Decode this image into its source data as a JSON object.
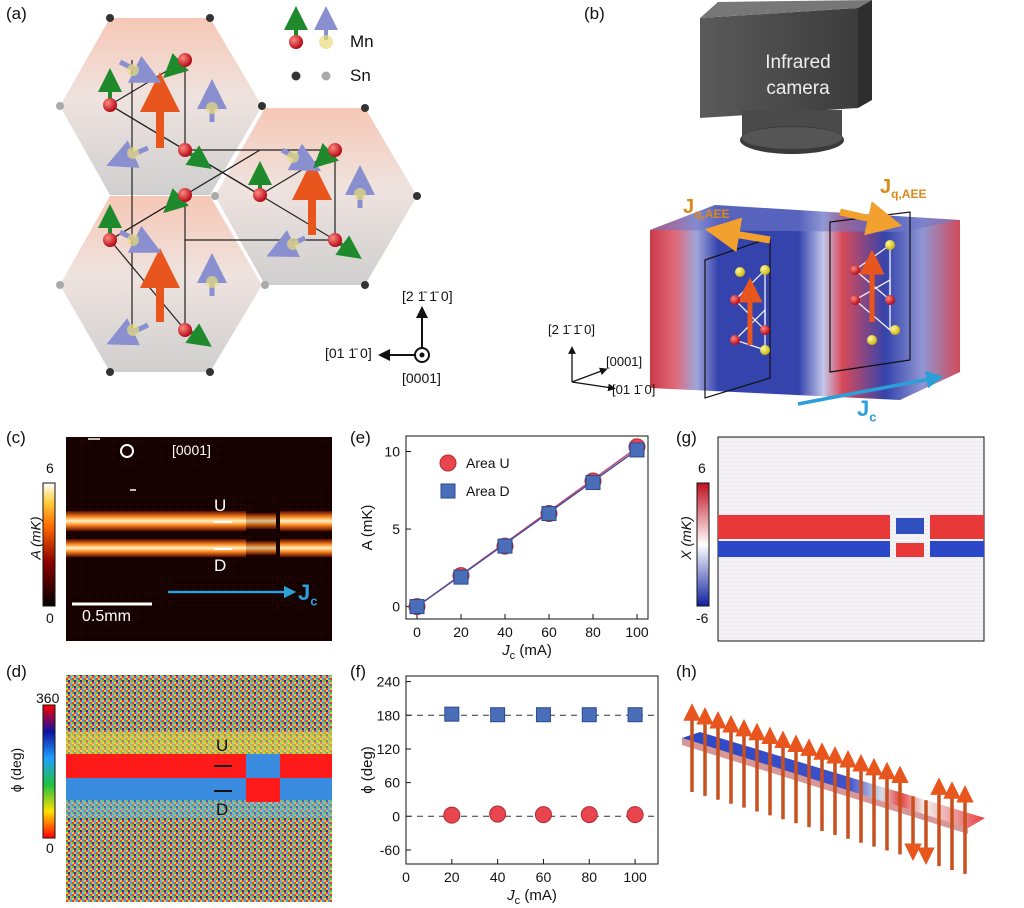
{
  "panel_labels": {
    "a": "(a)",
    "b": "(b)",
    "c": "(c)",
    "d": "(d)",
    "e": "(e)",
    "f": "(f)",
    "g": "(g)",
    "h": "(h)"
  },
  "panel_a": {
    "legend_mn": "Mn",
    "legend_sn": "Sn",
    "axis_up": "[2 1̄ 1̄ 0]",
    "axis_left": "[01 1̄ 0]",
    "axis_out": "[0001]"
  },
  "panel_b": {
    "camera_line1": "Infrared",
    "camera_line2": "camera",
    "jq_label": "J",
    "jq_sub": "q,AEE",
    "jc_label": "J",
    "jc_sub": "c",
    "axis_up": "[2 1̄ 1̄ 0]",
    "axis_a": "[0001]",
    "axis_b": "[01 1̄ 0]"
  },
  "panel_c": {
    "colorbar_max": "6",
    "colorbar_min": "0",
    "colorbar_label": "A (mK)",
    "direction": "[0001]",
    "label_u": "U",
    "label_d": "D",
    "scalebar": "0.5mm",
    "jc_label": "J",
    "jc_sub": "c"
  },
  "panel_d": {
    "colorbar_max": "360",
    "colorbar_min": "0",
    "colorbar_label": "ϕ (deg)",
    "label_u": "U",
    "label_d": "D"
  },
  "panel_g": {
    "colorbar_max": "6",
    "colorbar_min": "-6",
    "colorbar_label": "X (mK)"
  },
  "chart_data": [
    {
      "type": "scatter",
      "panel": "e",
      "xlabel": "J_c (mA)",
      "ylabel": "A (mK)",
      "xlim": [
        -5,
        105
      ],
      "ylim": [
        -0.8,
        11
      ],
      "xticks": [
        0,
        20,
        40,
        60,
        80,
        100
      ],
      "yticks": [
        0,
        5,
        10
      ],
      "legend_position": "top-left",
      "series": [
        {
          "name": "Area U",
          "color": "#e8454f",
          "marker": "circle",
          "x": [
            0,
            20,
            40,
            60,
            80,
            100
          ],
          "y": [
            0,
            2.0,
            3.9,
            6.0,
            8.1,
            10.3
          ]
        },
        {
          "name": "Area D",
          "color": "#4a6fb8",
          "marker": "square",
          "x": [
            0,
            20,
            40,
            60,
            80,
            100
          ],
          "y": [
            0,
            1.9,
            3.9,
            6.0,
            8.0,
            10.1
          ]
        }
      ],
      "fit_lines": [
        {
          "color": "#c04a6a",
          "x": [
            0,
            100
          ],
          "y": [
            0,
            10.25
          ]
        },
        {
          "color": "#4a4aa0",
          "x": [
            0,
            100
          ],
          "y": [
            0,
            10.1
          ]
        }
      ]
    },
    {
      "type": "scatter",
      "panel": "f",
      "xlabel": "J_c (mA)",
      "ylabel": "ϕ (deg)",
      "xlim": [
        0,
        110
      ],
      "ylim": [
        -85,
        250
      ],
      "xticks": [
        0,
        20,
        40,
        60,
        80,
        100
      ],
      "yticks": [
        -60,
        0,
        60,
        120,
        180,
        240
      ],
      "series": [
        {
          "name": "",
          "color": "#4a6fb8",
          "marker": "square",
          "x": [
            20,
            40,
            60,
            80,
            100
          ],
          "y": [
            182,
            181,
            181,
            181,
            181
          ]
        },
        {
          "name": "",
          "color": "#e8454f",
          "marker": "circle",
          "x": [
            20,
            40,
            60,
            80,
            100
          ],
          "y": [
            2,
            4,
            3,
            3,
            3
          ]
        }
      ],
      "reference_lines": [
        180,
        0
      ]
    }
  ]
}
